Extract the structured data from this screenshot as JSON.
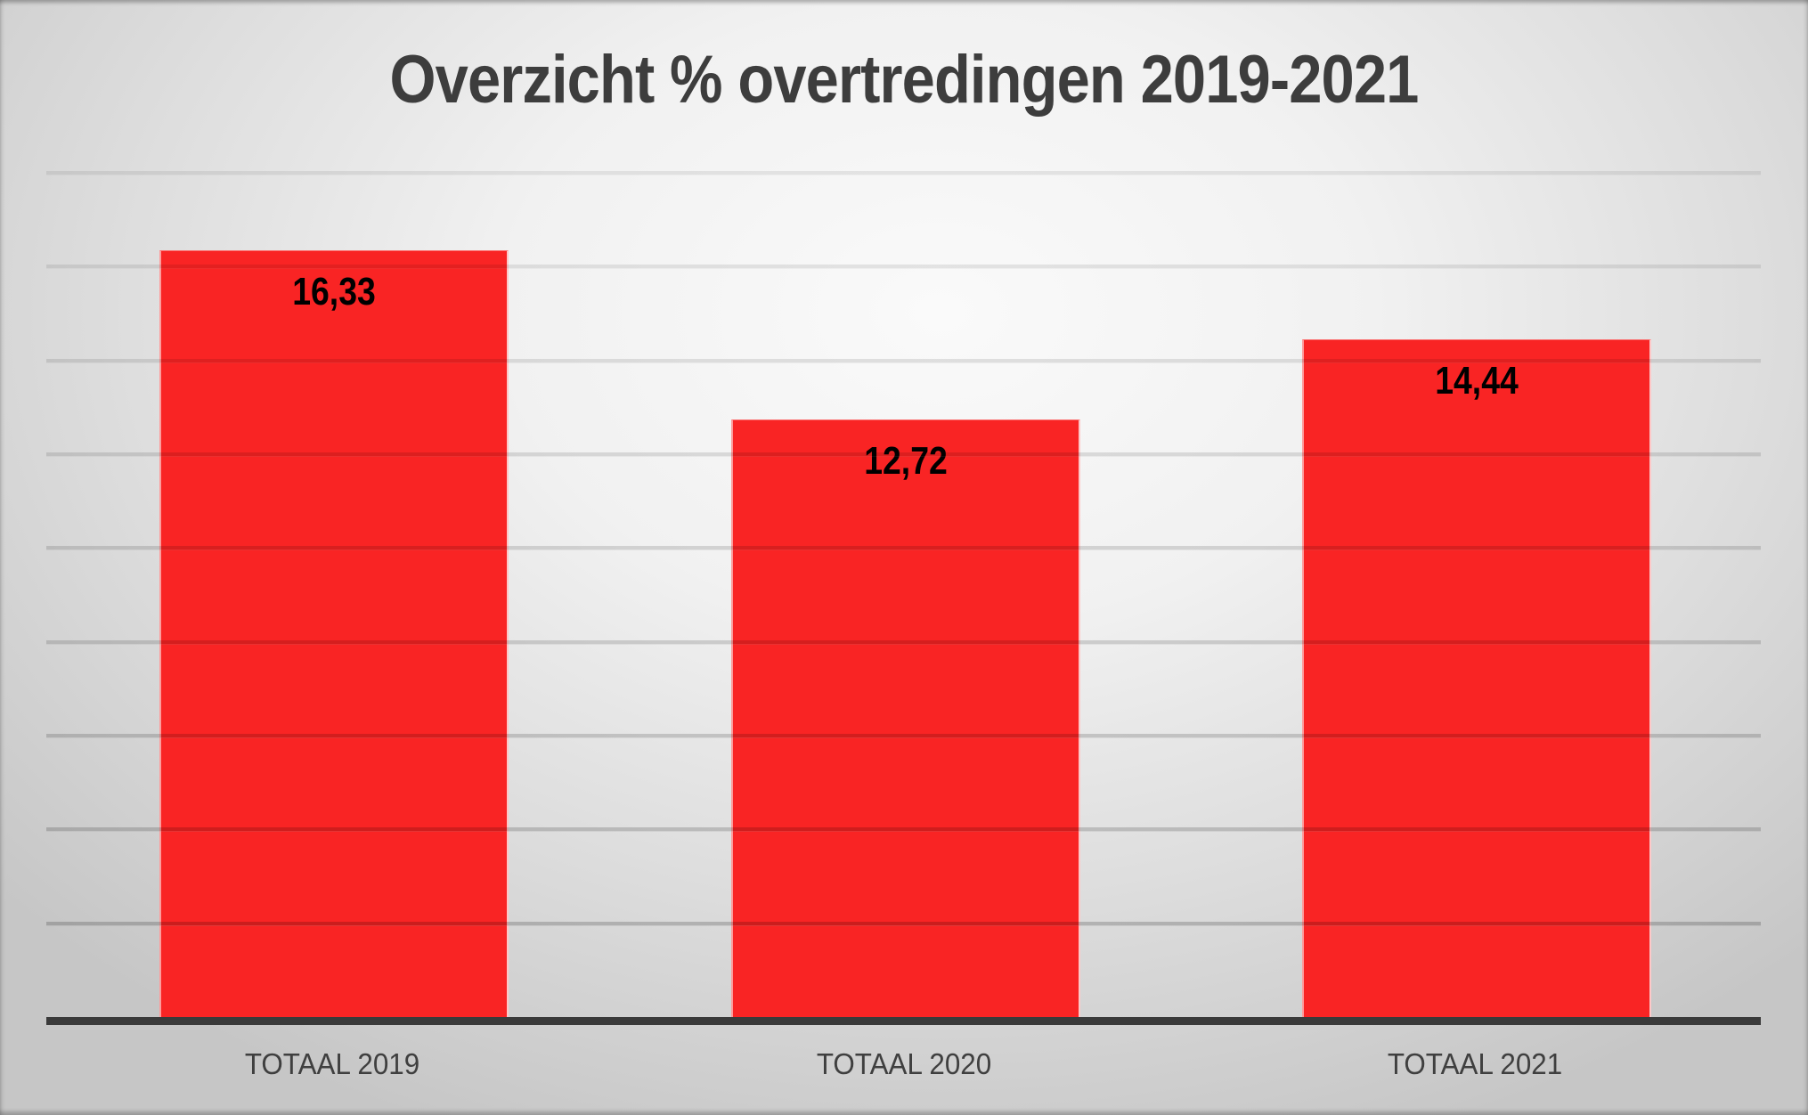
{
  "chart_data": {
    "type": "bar",
    "title": "Overzicht % overtredingen 2019-2021",
    "categories": [
      "TOTAAL 2019",
      "TOTAAL 2020",
      "TOTAAL 2021"
    ],
    "values": [
      16.33,
      12.72,
      14.44
    ],
    "value_labels": [
      "16,33",
      "12,72",
      "14,44"
    ],
    "xlabel": "",
    "ylabel": "",
    "ylim": [
      0,
      18
    ],
    "gridline_interval": 2,
    "grid": true,
    "legend": "none",
    "data_label_position": "inside-end",
    "bar_color": "#f92424",
    "data_label_color": "#000000",
    "title_color": "#3d3d3d",
    "axis_line_color": "#3a3a3a",
    "category_label_color": "#3f3f3f"
  }
}
